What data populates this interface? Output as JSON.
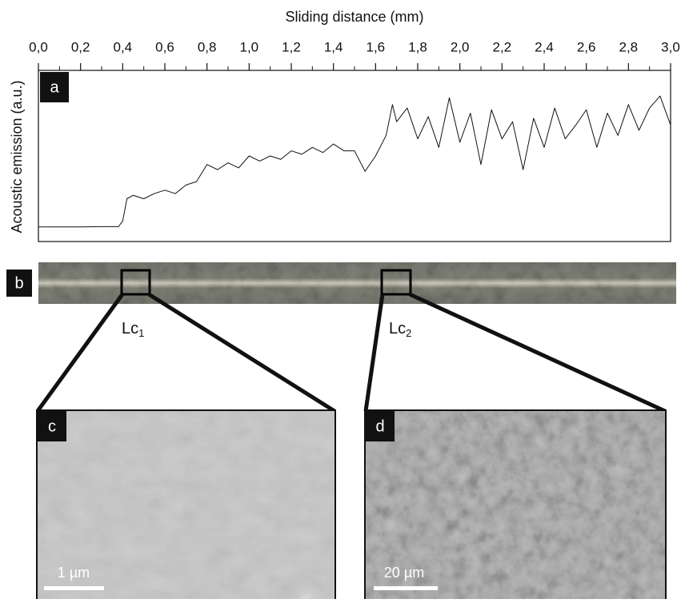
{
  "chart_data": {
    "type": "line",
    "x_label": "Sliding distance (mm)",
    "y_label": "Acoustic emission (a.u.)",
    "xlim": [
      0,
      3
    ],
    "ylim": [
      0,
      100
    ],
    "xticks": [
      {
        "value": 0,
        "label": "0,0"
      },
      {
        "value": 0.2,
        "label": "0,2"
      },
      {
        "value": 0.4,
        "label": "0,4"
      },
      {
        "value": 0.6,
        "label": "0,6"
      },
      {
        "value": 0.8,
        "label": "0,8"
      },
      {
        "value": 1,
        "label": "1,0"
      },
      {
        "value": 1.2,
        "label": "1,2"
      },
      {
        "value": 1.4,
        "label": "1,4"
      },
      {
        "value": 1.6,
        "label": "1,6"
      },
      {
        "value": 1.8,
        "label": "1,8"
      },
      {
        "value": 2,
        "label": "2,0"
      },
      {
        "value": 2.2,
        "label": "2,2"
      },
      {
        "value": 2.4,
        "label": "2,4"
      },
      {
        "value": 2.6,
        "label": "2,6"
      },
      {
        "value": 2.8,
        "label": "2,8"
      },
      {
        "value": 3,
        "label": "3,0"
      }
    ],
    "x": [
      0,
      0.1,
      0.2,
      0.3,
      0.38,
      0.4,
      0.42,
      0.45,
      0.5,
      0.55,
      0.6,
      0.65,
      0.7,
      0.75,
      0.8,
      0.85,
      0.9,
      0.95,
      1,
      1.05,
      1.1,
      1.15,
      1.2,
      1.25,
      1.3,
      1.35,
      1.4,
      1.45,
      1.5,
      1.55,
      1.6,
      1.65,
      1.68,
      1.7,
      1.75,
      1.8,
      1.85,
      1.9,
      1.95,
      2,
      2.05,
      2.1,
      2.15,
      2.2,
      2.25,
      2.3,
      2.35,
      2.4,
      2.45,
      2.5,
      2.55,
      2.6,
      2.65,
      2.7,
      2.75,
      2.8,
      2.85,
      2.9,
      2.95,
      3
    ],
    "series": [
      {
        "color": "#111111",
        "values": [
          8.5,
          8.5,
          8.5,
          8.7,
          8.7,
          12,
          25,
          27,
          25,
          28,
          30,
          28,
          33,
          35,
          45,
          42,
          46,
          43,
          50,
          47,
          50,
          48,
          53,
          51,
          55,
          52,
          57,
          53,
          53,
          41,
          50,
          62,
          80,
          70,
          78,
          60,
          73,
          55,
          84,
          58,
          75,
          45,
          77,
          60,
          70,
          42,
          72,
          55,
          78,
          60,
          68,
          77,
          55,
          75,
          62,
          80,
          65,
          78,
          85,
          68
        ]
      }
    ]
  },
  "panels": {
    "a": "a",
    "b": "b",
    "c": "c",
    "d": "d"
  },
  "annotations": {
    "lc1": {
      "text": "Lc",
      "subscript": "1"
    },
    "lc2": {
      "text": "Lc",
      "subscript": "2"
    },
    "scale_c": "1 µm",
    "scale_d": "20 µm"
  }
}
